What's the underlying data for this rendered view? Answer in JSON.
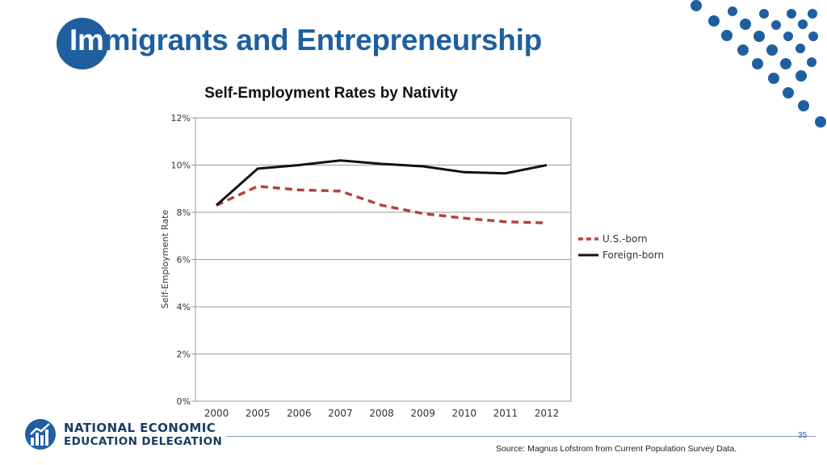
{
  "slide": {
    "title_highlight": "Im",
    "title_rest": "migrants and Entrepreneurship",
    "page_number": "35",
    "source": "Source: Magnus Lofstrom from Current Population Survey Data."
  },
  "logo": {
    "line1": "NATIONAL ECONOMIC",
    "line2": "EDUCATION DELEGATION"
  },
  "colors": {
    "brand_blue": "#1f5fa0",
    "us_born": "#b5423f",
    "foreign_born": "#111111"
  },
  "chart_data": {
    "type": "line",
    "title": "Self-Employment Rates by Nativity",
    "xlabel": "",
    "ylabel": "Self-Employment Rate",
    "categories": [
      "2000",
      "2005",
      "2006",
      "2007",
      "2008",
      "2009",
      "2010",
      "2011",
      "2012"
    ],
    "ylim": [
      0,
      12
    ],
    "yticks": [
      "0%",
      "2%",
      "4%",
      "6%",
      "8%",
      "10%",
      "12%"
    ],
    "grid": true,
    "legend_position": "right",
    "series": [
      {
        "name": "U.S.-born",
        "style": "dashed",
        "values": [
          8.3,
          9.1,
          8.95,
          8.9,
          8.3,
          7.95,
          7.75,
          7.6,
          7.55
        ]
      },
      {
        "name": "Foreign-born",
        "style": "solid",
        "values": [
          8.3,
          9.85,
          10.0,
          10.2,
          10.05,
          9.95,
          9.7,
          9.65,
          10.0
        ]
      }
    ]
  }
}
